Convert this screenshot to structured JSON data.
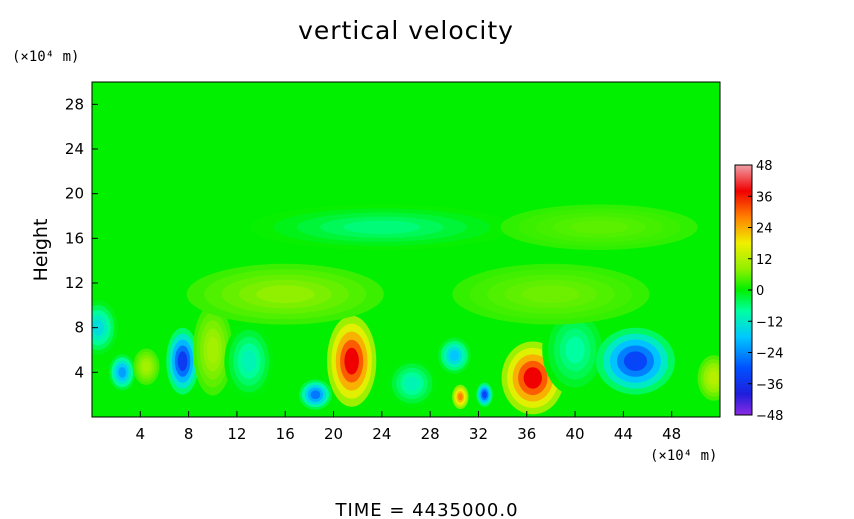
{
  "chart_data": {
    "type": "heatmap",
    "title": "vertical velocity",
    "ylabel": "Height",
    "x_unit_label": "(×10⁴ m)",
    "y_unit_label": "(×10⁴ m)",
    "footer": "TIME = 4435000.0",
    "xlim": [
      0,
      52
    ],
    "ylim": [
      0,
      30
    ],
    "x_ticks": [
      4,
      8,
      12,
      16,
      20,
      24,
      28,
      32,
      36,
      40,
      44,
      48
    ],
    "y_ticks": [
      4,
      8,
      12,
      16,
      20,
      24,
      28
    ],
    "colorbar": {
      "min": -48,
      "max": 48,
      "ticks": [
        48,
        36,
        24,
        12,
        0,
        -12,
        -24,
        -36,
        -48
      ],
      "stops": [
        {
          "v": -48,
          "color": "#8a2be2"
        },
        {
          "v": -40,
          "color": "#1e1edc"
        },
        {
          "v": -30,
          "color": "#0050ff"
        },
        {
          "v": -18,
          "color": "#00c8ff"
        },
        {
          "v": -8,
          "color": "#00ffa0"
        },
        {
          "v": 0,
          "color": "#00f000"
        },
        {
          "v": 8,
          "color": "#90f000"
        },
        {
          "v": 18,
          "color": "#f0f000"
        },
        {
          "v": 28,
          "color": "#ff8000"
        },
        {
          "v": 38,
          "color": "#f00000"
        },
        {
          "v": 48,
          "color": "#f0a0a8"
        }
      ]
    },
    "background_value": 2,
    "features": [
      {
        "x": 0.5,
        "y": 8,
        "value": -14,
        "sx": 1.2,
        "sy": 1.8
      },
      {
        "x": 2.5,
        "y": 4,
        "value": -22,
        "sx": 0.8,
        "sy": 1.2
      },
      {
        "x": 4.5,
        "y": 4.5,
        "value": 10,
        "sx": 0.8,
        "sy": 1.2
      },
      {
        "x": 7.5,
        "y": 5,
        "value": -34,
        "sx": 1.0,
        "sy": 2.2
      },
      {
        "x": 10,
        "y": 6,
        "value": 10,
        "sx": 1.2,
        "sy": 3.0
      },
      {
        "x": 13,
        "y": 5,
        "value": -10,
        "sx": 1.5,
        "sy": 2.5
      },
      {
        "x": 18.5,
        "y": 2,
        "value": -26,
        "sx": 1.0,
        "sy": 1.0
      },
      {
        "x": 21.5,
        "y": 5,
        "value": 38,
        "sx": 1.5,
        "sy": 3.0
      },
      {
        "x": 26.5,
        "y": 3,
        "value": -10,
        "sx": 1.5,
        "sy": 1.6
      },
      {
        "x": 30.5,
        "y": 1.8,
        "value": 28,
        "sx": 0.5,
        "sy": 0.8
      },
      {
        "x": 30,
        "y": 5.5,
        "value": -18,
        "sx": 1.0,
        "sy": 1.2
      },
      {
        "x": 32.5,
        "y": 2,
        "value": -32,
        "sx": 0.5,
        "sy": 0.8
      },
      {
        "x": 36.5,
        "y": 3.5,
        "value": 38,
        "sx": 1.9,
        "sy": 2.4
      },
      {
        "x": 40,
        "y": 6,
        "value": -8,
        "sx": 2.0,
        "sy": 3.0
      },
      {
        "x": 45,
        "y": 5,
        "value": -32,
        "sx": 2.4,
        "sy": 2.2
      },
      {
        "x": 51.5,
        "y": 3.5,
        "value": 12,
        "sx": 1.0,
        "sy": 1.5
      },
      {
        "x": 16,
        "y": 11,
        "value": 8,
        "sx": 6.0,
        "sy": 2.0
      },
      {
        "x": 38,
        "y": 11,
        "value": 6,
        "sx": 6.0,
        "sy": 2.0
      },
      {
        "x": 24,
        "y": 17,
        "value": -6,
        "sx": 8.0,
        "sy": 1.5
      },
      {
        "x": 42,
        "y": 17,
        "value": 5,
        "sx": 6.0,
        "sy": 1.5
      }
    ]
  }
}
